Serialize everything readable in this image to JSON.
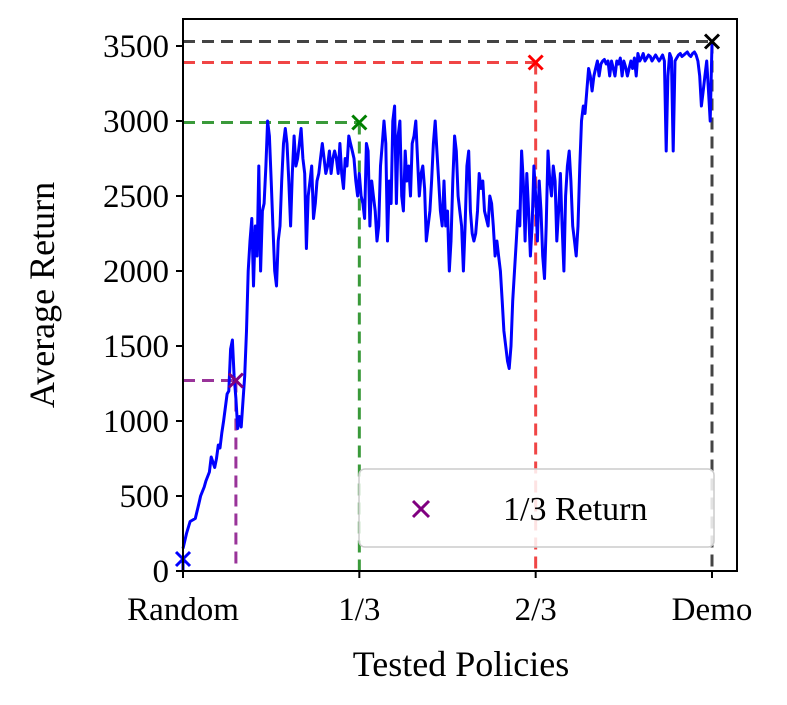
{
  "chart_data": {
    "type": "line",
    "xlabel": "Tested Policies",
    "ylabel": "Average Return",
    "xticks": [
      {
        "x": 0,
        "label": "Random"
      },
      {
        "x": 1,
        "label": "1/3"
      },
      {
        "x": 2,
        "label": "2/3"
      },
      {
        "x": 3,
        "label": "Demo"
      }
    ],
    "ylim": [
      0,
      3700
    ],
    "yticks": [
      0,
      500,
      1000,
      1500,
      2000,
      2500,
      3000,
      3500
    ],
    "grid": false,
    "series": [
      {
        "color": "#0000ff",
        "points": [
          [
            0.0,
            150
          ],
          [
            0.02,
            250
          ],
          [
            0.04,
            330
          ],
          [
            0.07,
            350
          ],
          [
            0.09,
            450
          ],
          [
            0.1,
            500
          ],
          [
            0.12,
            560
          ],
          [
            0.13,
            600
          ],
          [
            0.15,
            660
          ],
          [
            0.16,
            760
          ],
          [
            0.18,
            690
          ],
          [
            0.19,
            750
          ],
          [
            0.2,
            840
          ],
          [
            0.21,
            820
          ],
          [
            0.22,
            920
          ],
          [
            0.23,
            1000
          ],
          [
            0.25,
            1180
          ],
          [
            0.26,
            1200
          ],
          [
            0.27,
            1480
          ],
          [
            0.28,
            1540
          ],
          [
            0.29,
            1300
          ],
          [
            0.3,
            1150
          ],
          [
            0.31,
            950
          ],
          [
            0.32,
            1030
          ],
          [
            0.33,
            960
          ],
          [
            0.35,
            1300
          ],
          [
            0.36,
            1600
          ],
          [
            0.37,
            2000
          ],
          [
            0.38,
            2200
          ],
          [
            0.39,
            2350
          ],
          [
            0.4,
            1900
          ],
          [
            0.41,
            2300
          ],
          [
            0.42,
            2100
          ],
          [
            0.43,
            2700
          ],
          [
            0.44,
            2000
          ],
          [
            0.45,
            2400
          ],
          [
            0.46,
            2450
          ],
          [
            0.47,
            2700
          ],
          [
            0.48,
            3000
          ],
          [
            0.49,
            2900
          ],
          [
            0.5,
            2600
          ],
          [
            0.51,
            2300
          ],
          [
            0.52,
            2000
          ],
          [
            0.53,
            1900
          ],
          [
            0.54,
            2200
          ],
          [
            0.55,
            2300
          ],
          [
            0.56,
            2600
          ],
          [
            0.57,
            2850
          ],
          [
            0.58,
            2950
          ],
          [
            0.59,
            2850
          ],
          [
            0.6,
            2600
          ],
          [
            0.61,
            2300
          ],
          [
            0.62,
            2650
          ],
          [
            0.63,
            2900
          ],
          [
            0.64,
            2700
          ],
          [
            0.65,
            2750
          ],
          [
            0.66,
            2850
          ],
          [
            0.67,
            2950
          ],
          [
            0.68,
            2750
          ],
          [
            0.69,
            2650
          ],
          [
            0.7,
            2150
          ],
          [
            0.71,
            2500
          ],
          [
            0.72,
            2600
          ],
          [
            0.73,
            2700
          ],
          [
            0.74,
            2350
          ],
          [
            0.75,
            2450
          ],
          [
            0.76,
            2600
          ],
          [
            0.77,
            2650
          ],
          [
            0.78,
            2750
          ],
          [
            0.79,
            2850
          ],
          [
            0.8,
            2750
          ],
          [
            0.81,
            2650
          ],
          [
            0.82,
            2700
          ],
          [
            0.83,
            2800
          ],
          [
            0.84,
            2650
          ],
          [
            0.85,
            2750
          ],
          [
            0.86,
            2800
          ],
          [
            0.87,
            2750
          ],
          [
            0.88,
            2650
          ],
          [
            0.89,
            2850
          ],
          [
            0.9,
            2650
          ],
          [
            0.91,
            2550
          ],
          [
            0.92,
            2750
          ],
          [
            0.93,
            2700
          ],
          [
            0.94,
            2900
          ],
          [
            0.95,
            2850
          ],
          [
            0.96,
            2800
          ],
          [
            0.97,
            2750
          ],
          [
            0.98,
            2600
          ],
          [
            0.99,
            2500
          ],
          [
            1.0,
            2650
          ],
          [
            1.01,
            2500
          ],
          [
            1.02,
            2450
          ],
          [
            1.03,
            2350
          ],
          [
            1.04,
            2850
          ],
          [
            1.05,
            2800
          ],
          [
            1.06,
            2300
          ],
          [
            1.07,
            2600
          ],
          [
            1.08,
            2500
          ],
          [
            1.09,
            2400
          ],
          [
            1.1,
            2200
          ],
          [
            1.11,
            2300
          ],
          [
            1.12,
            2700
          ],
          [
            1.13,
            2850
          ],
          [
            1.14,
            3000
          ],
          [
            1.15,
            2850
          ],
          [
            1.16,
            2200
          ],
          [
            1.17,
            2600
          ],
          [
            1.18,
            2450
          ],
          [
            1.19,
            3000
          ],
          [
            1.2,
            3100
          ],
          [
            1.21,
            2450
          ],
          [
            1.22,
            2900
          ],
          [
            1.23,
            3000
          ],
          [
            1.24,
            2500
          ],
          [
            1.25,
            2400
          ],
          [
            1.26,
            2800
          ],
          [
            1.27,
            2600
          ],
          [
            1.28,
            2700
          ],
          [
            1.29,
            2500
          ],
          [
            1.3,
            2850
          ],
          [
            1.31,
            2900
          ],
          [
            1.32,
            3000
          ],
          [
            1.33,
            2750
          ],
          [
            1.34,
            2500
          ],
          [
            1.35,
            2650
          ],
          [
            1.36,
            2700
          ],
          [
            1.37,
            2550
          ],
          [
            1.38,
            2200
          ],
          [
            1.39,
            2300
          ],
          [
            1.4,
            2400
          ],
          [
            1.41,
            2600
          ],
          [
            1.42,
            2850
          ],
          [
            1.43,
            3000
          ],
          [
            1.44,
            2800
          ],
          [
            1.45,
            2600
          ],
          [
            1.46,
            2400
          ],
          [
            1.47,
            2300
          ],
          [
            1.48,
            2600
          ],
          [
            1.49,
            2300
          ],
          [
            1.5,
            2400
          ],
          [
            1.51,
            2000
          ],
          [
            1.52,
            2200
          ],
          [
            1.53,
            2600
          ],
          [
            1.54,
            2900
          ],
          [
            1.55,
            2800
          ],
          [
            1.56,
            2500
          ],
          [
            1.57,
            2400
          ],
          [
            1.58,
            2300
          ],
          [
            1.59,
            2000
          ],
          [
            1.6,
            2300
          ],
          [
            1.61,
            2700
          ],
          [
            1.62,
            2800
          ],
          [
            1.63,
            2400
          ],
          [
            1.64,
            2250
          ],
          [
            1.65,
            2200
          ],
          [
            1.66,
            2250
          ],
          [
            1.67,
            2400
          ],
          [
            1.68,
            2650
          ],
          [
            1.69,
            2550
          ],
          [
            1.7,
            2600
          ],
          [
            1.71,
            2400
          ],
          [
            1.72,
            2350
          ],
          [
            1.73,
            2300
          ],
          [
            1.74,
            2500
          ],
          [
            1.75,
            2450
          ],
          [
            1.76,
            2300
          ],
          [
            1.77,
            2100
          ],
          [
            1.78,
            2200
          ],
          [
            1.79,
            2100
          ],
          [
            1.8,
            2000
          ],
          [
            1.81,
            1800
          ],
          [
            1.82,
            1600
          ],
          [
            1.83,
            1500
          ],
          [
            1.84,
            1400
          ],
          [
            1.85,
            1350
          ],
          [
            1.86,
            1500
          ],
          [
            1.87,
            1800
          ],
          [
            1.88,
            2000
          ],
          [
            1.89,
            2200
          ],
          [
            1.9,
            2400
          ],
          [
            1.91,
            2300
          ],
          [
            1.92,
            2800
          ],
          [
            1.93,
            2600
          ],
          [
            1.94,
            2200
          ],
          [
            1.95,
            2650
          ],
          [
            1.96,
            2400
          ],
          [
            1.97,
            2100
          ],
          [
            1.98,
            2300
          ],
          [
            1.99,
            2700
          ],
          [
            2.0,
            2500
          ],
          [
            2.01,
            2200
          ],
          [
            2.02,
            2600
          ],
          [
            2.03,
            2400
          ],
          [
            2.04,
            2100
          ],
          [
            2.05,
            1950
          ],
          [
            2.06,
            2300
          ],
          [
            2.07,
            2800
          ],
          [
            2.08,
            2600
          ],
          [
            2.09,
            2500
          ],
          [
            2.1,
            2700
          ],
          [
            2.11,
            2600
          ],
          [
            2.12,
            2200
          ],
          [
            2.13,
            2400
          ],
          [
            2.14,
            2650
          ],
          [
            2.15,
            2300
          ],
          [
            2.16,
            2000
          ],
          [
            2.17,
            2500
          ],
          [
            2.18,
            2700
          ],
          [
            2.19,
            2800
          ],
          [
            2.2,
            2600
          ],
          [
            2.21,
            2300
          ],
          [
            2.22,
            2200
          ],
          [
            2.23,
            2100
          ],
          [
            2.24,
            2300
          ],
          [
            2.25,
            2700
          ],
          [
            2.26,
            3000
          ],
          [
            2.27,
            3100
          ],
          [
            2.28,
            3050
          ],
          [
            2.29,
            3200
          ],
          [
            2.3,
            3350
          ],
          [
            2.31,
            3300
          ],
          [
            2.32,
            3200
          ],
          [
            2.33,
            3300
          ],
          [
            2.34,
            3350
          ],
          [
            2.35,
            3400
          ],
          [
            2.36,
            3300
          ],
          [
            2.37,
            3380
          ],
          [
            2.38,
            3400
          ],
          [
            2.39,
            3410
          ],
          [
            2.4,
            3380
          ],
          [
            2.41,
            3400
          ],
          [
            2.42,
            3300
          ],
          [
            2.43,
            3400
          ],
          [
            2.44,
            3350
          ],
          [
            2.45,
            3300
          ],
          [
            2.46,
            3400
          ],
          [
            2.47,
            3380
          ],
          [
            2.48,
            3420
          ],
          [
            2.49,
            3300
          ],
          [
            2.5,
            3400
          ],
          [
            2.51,
            3360
          ],
          [
            2.52,
            3300
          ],
          [
            2.53,
            3350
          ],
          [
            2.54,
            3400
          ],
          [
            2.55,
            3350
          ],
          [
            2.56,
            3420
          ],
          [
            2.57,
            3300
          ],
          [
            2.58,
            3450
          ],
          [
            2.59,
            3400
          ],
          [
            2.6,
            3420
          ],
          [
            2.61,
            3450
          ],
          [
            2.62,
            3400
          ],
          [
            2.63,
            3420
          ],
          [
            2.64,
            3440
          ],
          [
            2.65,
            3430
          ],
          [
            2.66,
            3400
          ],
          [
            2.67,
            3420
          ],
          [
            2.68,
            3440
          ],
          [
            2.69,
            3420
          ],
          [
            2.7,
            3400
          ],
          [
            2.71,
            3420
          ],
          [
            2.72,
            3440
          ],
          [
            2.73,
            3400
          ],
          [
            2.74,
            2800
          ],
          [
            2.75,
            3300
          ],
          [
            2.76,
            3450
          ],
          [
            2.77,
            3420
          ],
          [
            2.78,
            2800
          ],
          [
            2.79,
            3400
          ],
          [
            2.8,
            3420
          ],
          [
            2.81,
            3440
          ],
          [
            2.82,
            3450
          ],
          [
            2.83,
            3430
          ],
          [
            2.84,
            3440
          ],
          [
            2.85,
            3450
          ],
          [
            2.86,
            3460
          ],
          [
            2.87,
            3440
          ],
          [
            2.88,
            3430
          ],
          [
            2.89,
            3450
          ],
          [
            2.9,
            3460
          ],
          [
            2.91,
            3440
          ],
          [
            2.92,
            3400
          ],
          [
            2.93,
            3300
          ],
          [
            2.94,
            3100
          ],
          [
            2.95,
            3200
          ],
          [
            2.96,
            3300
          ],
          [
            2.97,
            3400
          ],
          [
            2.98,
            3200
          ],
          [
            2.99,
            3000
          ],
          [
            3.0,
            3520
          ]
        ]
      }
    ],
    "markers": [
      {
        "x": 0.0,
        "y": 80,
        "color": "#0000ff",
        "guide_color": "#0000ff"
      },
      {
        "x": 0.3,
        "y": 1270,
        "color": "#800080",
        "guide_color": "#993399"
      },
      {
        "x": 1.0,
        "y": 2990,
        "color": "#008000",
        "guide_color": "#3a9a3a"
      },
      {
        "x": 2.0,
        "y": 3390,
        "color": "#ff0000",
        "guide_color": "#f04545"
      },
      {
        "x": 3.0,
        "y": 3530,
        "color": "#000000",
        "guide_color": "#444444"
      }
    ],
    "legend": {
      "position": "lower right",
      "entries": [
        {
          "label": "1/3 Return",
          "marker": "x",
          "color": "#800080"
        }
      ]
    }
  }
}
